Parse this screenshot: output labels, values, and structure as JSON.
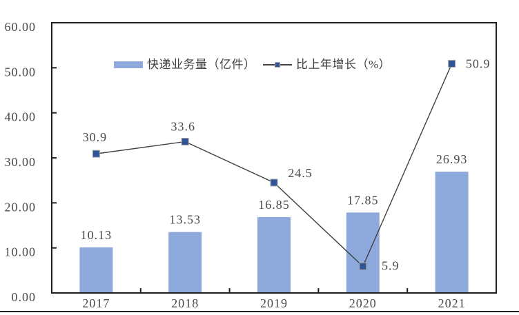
{
  "chart_data": {
    "type": "bar+line",
    "title": "",
    "xlabel": "",
    "ylabel": "",
    "categories": [
      "2017",
      "2018",
      "2019",
      "2020",
      "2021"
    ],
    "series": [
      {
        "name": "快递业务量（亿件）",
        "type": "bar",
        "values": [
          10.13,
          13.53,
          16.85,
          17.85,
          26.93
        ],
        "labels": [
          "10.13",
          "13.53",
          "16.85",
          "17.85",
          "26.93"
        ],
        "color": "#8EA9DB"
      },
      {
        "name": "比上年增长（%）",
        "type": "line",
        "values": [
          30.9,
          33.6,
          24.5,
          5.9,
          50.9
        ],
        "labels": [
          "30.9",
          "33.6",
          "24.5",
          "5.9",
          "50.9"
        ],
        "line_color": "#404040",
        "marker_color": "#2F5597",
        "marker_edge_color": "#a6a6a6"
      }
    ],
    "ylim": [
      0,
      60
    ],
    "ytick_step": 10,
    "ytick_labels": [
      "0.00",
      "10.00",
      "20.00",
      "30.00",
      "40.00",
      "50.00",
      "60.00"
    ],
    "grid": false,
    "legend_position": "top-center-inside",
    "axis_line_color": "#1f1f1f",
    "axis_text_color": "#4a4a4a"
  }
}
